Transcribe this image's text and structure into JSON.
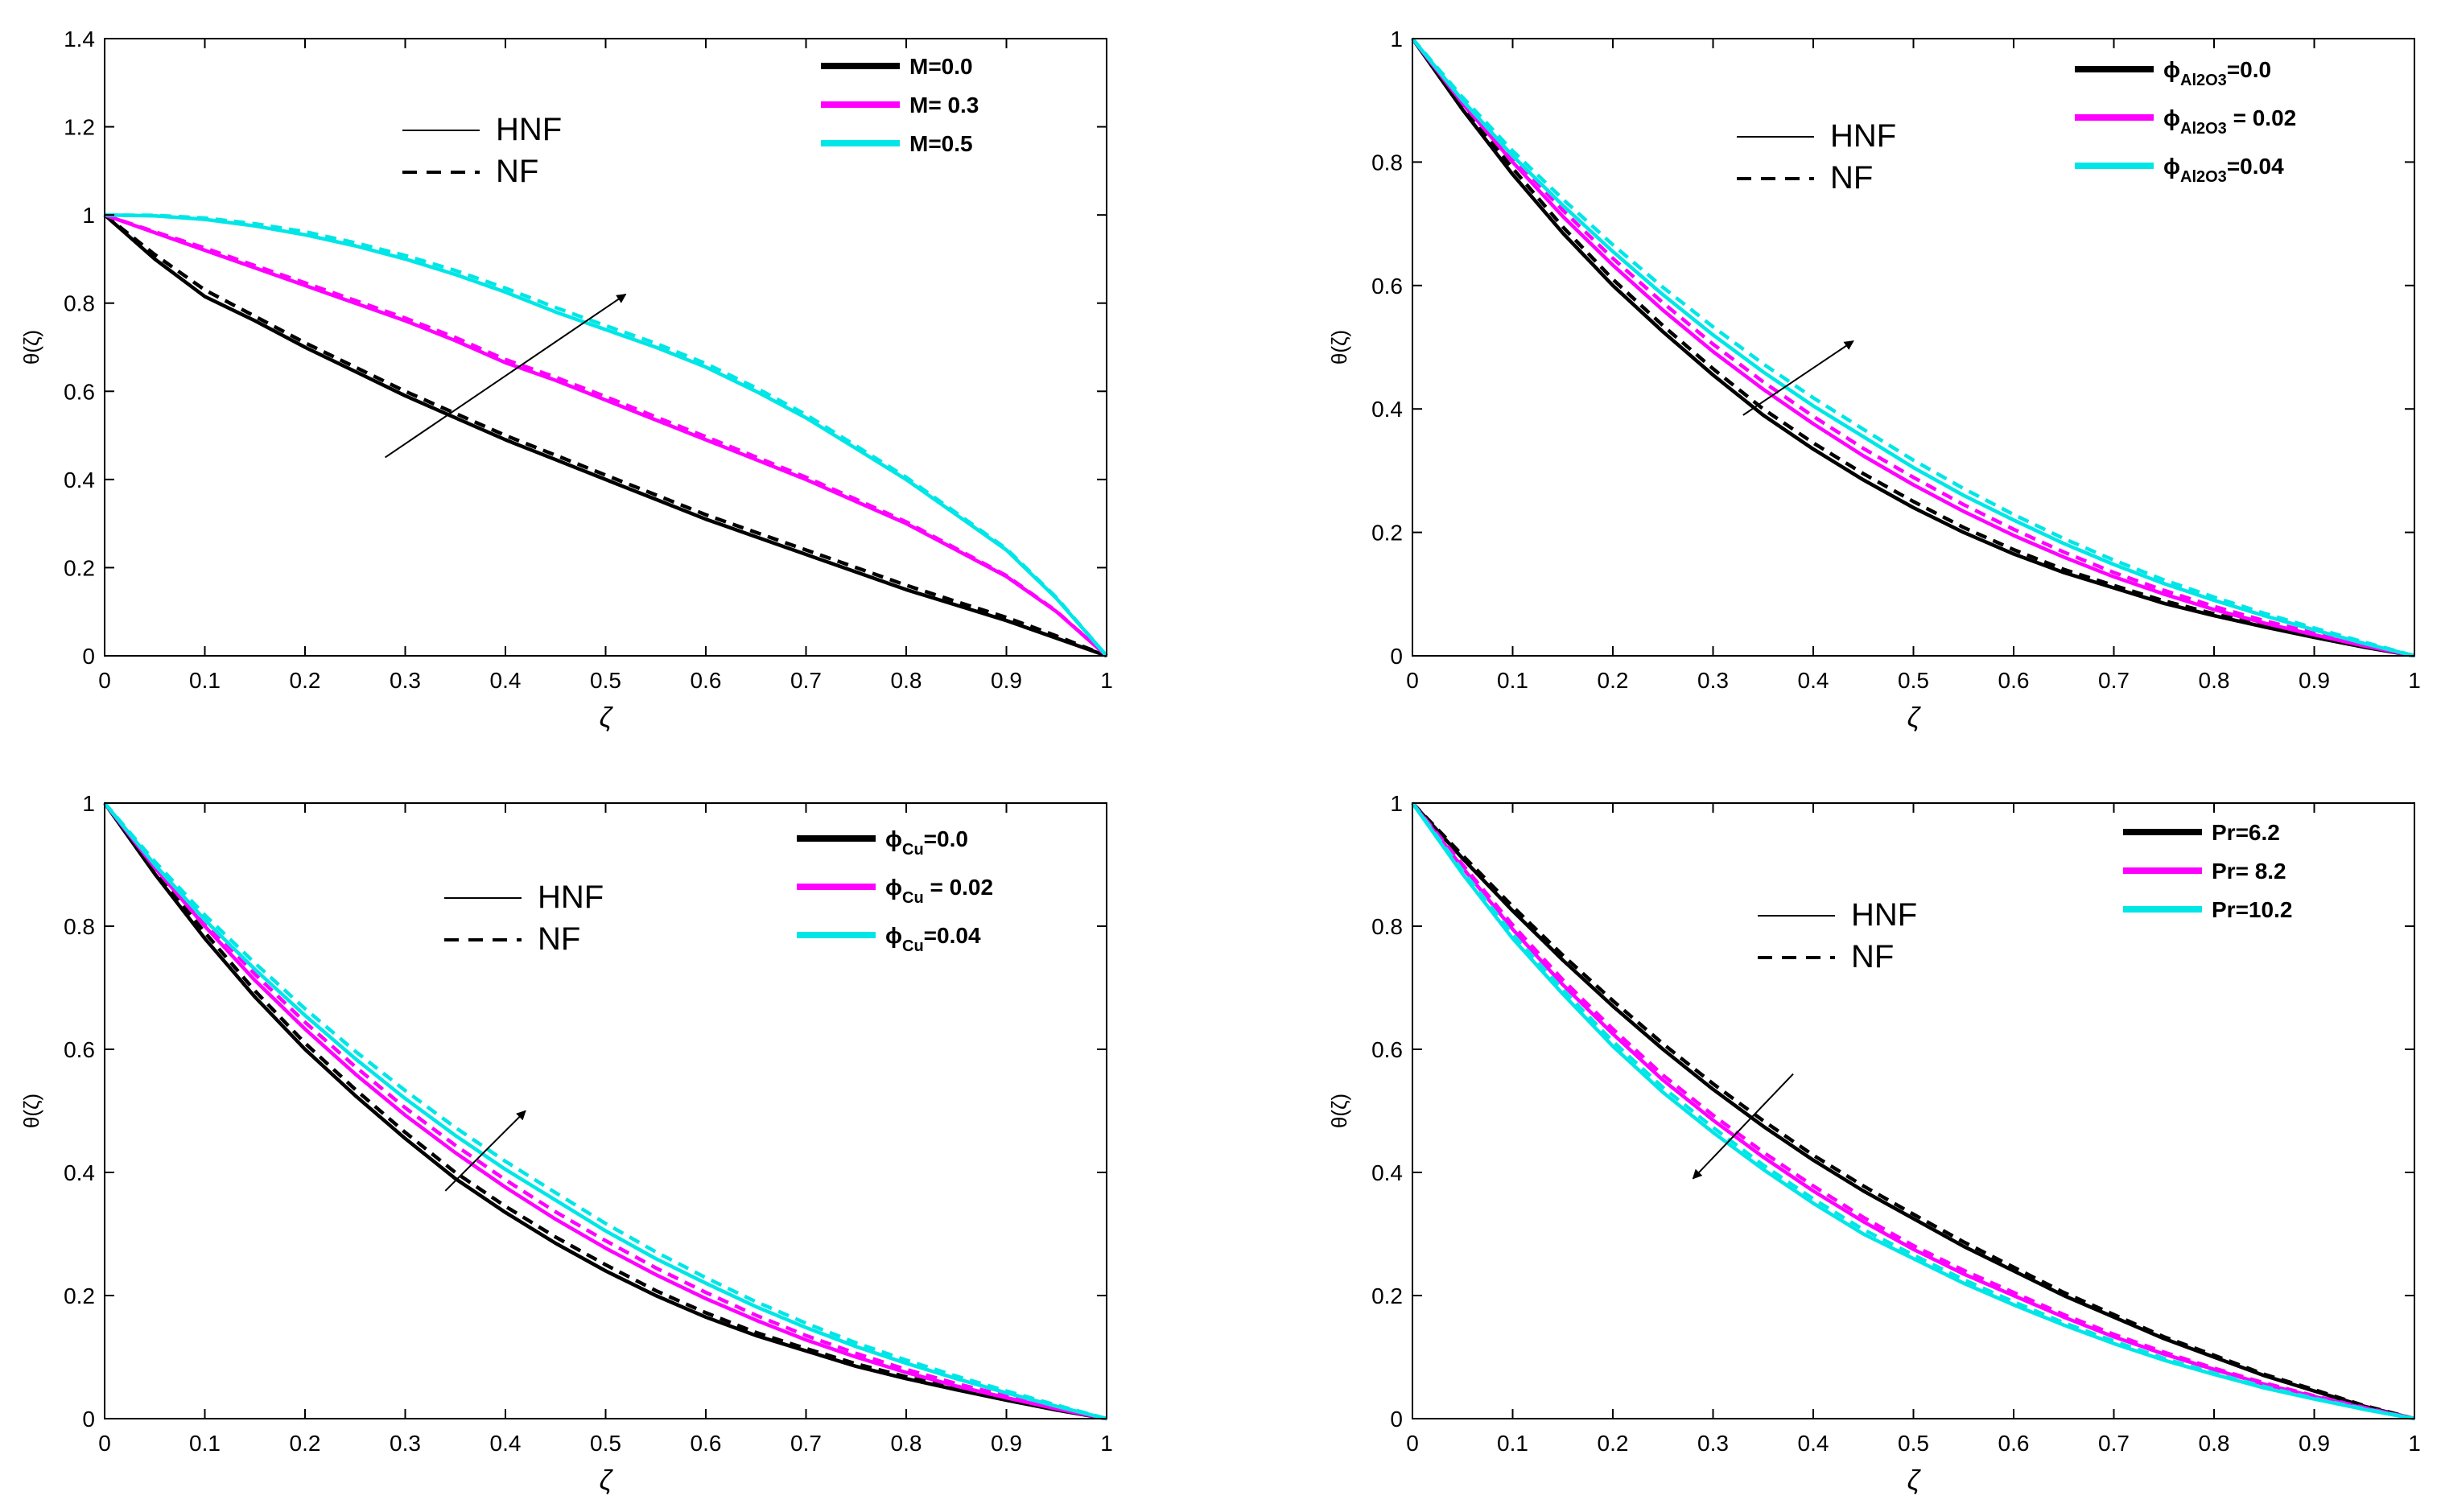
{
  "chart_data": [
    {
      "type": "line",
      "xlabel": "ζ",
      "ylabel": "θ(ζ)",
      "xlim": [
        0,
        1
      ],
      "ylim": [
        0,
        1.4
      ],
      "xticks": [
        "0",
        "0.1",
        "0.2",
        "0.3",
        "0.4",
        "0.5",
        "0.6",
        "0.7",
        "0.8",
        "0.9",
        "1"
      ],
      "yticks": [
        "0",
        "0.2",
        "0.4",
        "0.6",
        "0.8",
        "1",
        "1.2",
        "1.4"
      ],
      "style_key": {
        "solid": "HNF",
        "dashed": "NF"
      },
      "legend": [
        {
          "label": "M=0.0",
          "color": "#000000"
        },
        {
          "label": "M= 0.3",
          "color": "#ff00ff"
        },
        {
          "label": "M=0.5",
          "color": "#00e6e6"
        }
      ],
      "arrow": {
        "from": [
          0.28,
          0.45
        ],
        "to": [
          0.52,
          0.82
        ]
      },
      "x": [
        0,
        0.05,
        0.1,
        0.15,
        0.2,
        0.25,
        0.3,
        0.35,
        0.4,
        0.45,
        0.5,
        0.55,
        0.6,
        0.65,
        0.7,
        0.75,
        0.8,
        0.85,
        0.9,
        0.95,
        1
      ],
      "series": [
        {
          "name": "M=0.0 HNF",
          "color": "#000000",
          "dash": false,
          "values": [
            1,
            0.9,
            0.815,
            0.76,
            0.7,
            0.645,
            0.59,
            0.54,
            0.49,
            0.445,
            0.4,
            0.355,
            0.31,
            0.27,
            0.23,
            0.19,
            0.15,
            0.115,
            0.08,
            0.04,
            0
          ]
        },
        {
          "name": "M=0.0 NF",
          "color": "#000000",
          "dash": true,
          "values": [
            1,
            0.91,
            0.83,
            0.77,
            0.71,
            0.655,
            0.6,
            0.55,
            0.5,
            0.455,
            0.41,
            0.365,
            0.32,
            0.28,
            0.24,
            0.2,
            0.16,
            0.123,
            0.087,
            0.045,
            0
          ]
        },
        {
          "name": "M= 0.3 HNF",
          "color": "#ff00ff",
          "dash": false,
          "values": [
            1,
            0.96,
            0.92,
            0.88,
            0.84,
            0.8,
            0.76,
            0.715,
            0.665,
            0.625,
            0.58,
            0.535,
            0.49,
            0.445,
            0.4,
            0.35,
            0.3,
            0.24,
            0.18,
            0.1,
            0
          ]
        },
        {
          "name": "M= 0.3 NF",
          "color": "#ff00ff",
          "dash": true,
          "values": [
            1,
            0.962,
            0.925,
            0.885,
            0.846,
            0.806,
            0.766,
            0.722,
            0.672,
            0.632,
            0.588,
            0.542,
            0.497,
            0.451,
            0.405,
            0.355,
            0.304,
            0.243,
            0.182,
            0.101,
            0
          ]
        },
        {
          "name": "M=0.5 HNF",
          "color": "#00e6e6",
          "dash": false,
          "values": [
            1,
            0.998,
            0.99,
            0.975,
            0.955,
            0.93,
            0.9,
            0.865,
            0.825,
            0.78,
            0.74,
            0.7,
            0.655,
            0.6,
            0.54,
            0.47,
            0.4,
            0.32,
            0.24,
            0.13,
            0
          ]
        },
        {
          "name": "M=0.5 NF",
          "color": "#00e6e6",
          "dash": true,
          "values": [
            1,
            0.999,
            0.993,
            0.98,
            0.962,
            0.937,
            0.908,
            0.874,
            0.834,
            0.79,
            0.749,
            0.709,
            0.663,
            0.608,
            0.547,
            0.476,
            0.405,
            0.324,
            0.243,
            0.132,
            0
          ]
        }
      ]
    },
    {
      "type": "line",
      "xlabel": "ζ",
      "ylabel": "θ(ζ)",
      "xlim": [
        0,
        1
      ],
      "ylim": [
        0,
        1
      ],
      "xticks": [
        "0",
        "0.1",
        "0.2",
        "0.3",
        "0.4",
        "0.5",
        "0.6",
        "0.7",
        "0.8",
        "0.9",
        "1"
      ],
      "yticks": [
        "0",
        "0.2",
        "0.4",
        "0.6",
        "0.8",
        "1"
      ],
      "style_key": {
        "solid": "HNF",
        "dashed": "NF"
      },
      "legend": [
        {
          "symbol": "ϕ",
          "sub": "Al2O3",
          "value": "=0.0",
          "color": "#000000"
        },
        {
          "symbol": "ϕ",
          "sub": "Al2O3",
          "value": " = 0.02",
          "color": "#ff00ff"
        },
        {
          "symbol": "ϕ",
          "sub": "Al2O3",
          "value": "=0.04",
          "color": "#00e6e6"
        }
      ],
      "arrow": {
        "from": [
          0.33,
          0.39
        ],
        "to": [
          0.44,
          0.51
        ]
      },
      "x": [
        0,
        0.05,
        0.1,
        0.15,
        0.2,
        0.25,
        0.3,
        0.35,
        0.4,
        0.45,
        0.5,
        0.55,
        0.6,
        0.65,
        0.7,
        0.75,
        0.8,
        0.85,
        0.9,
        0.95,
        1
      ],
      "series": [
        {
          "name": "ϕAl2O3=0.0 HNF",
          "color": "#000000",
          "dash": false,
          "values": [
            1,
            0.885,
            0.78,
            0.685,
            0.6,
            0.525,
            0.455,
            0.39,
            0.335,
            0.285,
            0.24,
            0.2,
            0.165,
            0.135,
            0.11,
            0.085,
            0.065,
            0.047,
            0.03,
            0.014,
            0
          ]
        },
        {
          "name": "ϕAl2O3=0.0 NF",
          "color": "#000000",
          "dash": true,
          "values": [
            1,
            0.89,
            0.79,
            0.695,
            0.61,
            0.535,
            0.465,
            0.4,
            0.345,
            0.295,
            0.25,
            0.208,
            0.172,
            0.14,
            0.114,
            0.089,
            0.068,
            0.049,
            0.032,
            0.015,
            0
          ]
        },
        {
          "name": "ϕAl2O3 = 0.02 HNF",
          "color": "#ff00ff",
          "dash": false,
          "values": [
            1,
            0.895,
            0.8,
            0.712,
            0.633,
            0.56,
            0.493,
            0.432,
            0.376,
            0.324,
            0.277,
            0.234,
            0.195,
            0.16,
            0.128,
            0.1,
            0.075,
            0.053,
            0.034,
            0.016,
            0
          ]
        },
        {
          "name": "ϕAl2O3 = 0.02 NF",
          "color": "#ff00ff",
          "dash": true,
          "values": [
            1,
            0.9,
            0.808,
            0.722,
            0.644,
            0.572,
            0.505,
            0.444,
            0.388,
            0.336,
            0.289,
            0.245,
            0.205,
            0.168,
            0.135,
            0.106,
            0.08,
            0.057,
            0.037,
            0.018,
            0
          ]
        },
        {
          "name": "ϕAl2O3=0.04 HNF",
          "color": "#00e6e6",
          "dash": false,
          "values": [
            1,
            0.9,
            0.81,
            0.73,
            0.655,
            0.585,
            0.52,
            0.46,
            0.405,
            0.355,
            0.305,
            0.26,
            0.22,
            0.182,
            0.148,
            0.117,
            0.09,
            0.065,
            0.042,
            0.02,
            0
          ]
        },
        {
          "name": "ϕAl2O3=0.04 NF",
          "color": "#00e6e6",
          "dash": true,
          "values": [
            1,
            0.905,
            0.818,
            0.74,
            0.666,
            0.597,
            0.533,
            0.473,
            0.418,
            0.367,
            0.317,
            0.271,
            0.229,
            0.19,
            0.155,
            0.123,
            0.095,
            0.069,
            0.045,
            0.022,
            0
          ]
        }
      ]
    },
    {
      "type": "line",
      "xlabel": "ζ",
      "ylabel": "θ(ζ)",
      "xlim": [
        0,
        1
      ],
      "ylim": [
        0,
        1
      ],
      "xticks": [
        "0",
        "0.1",
        "0.2",
        "0.3",
        "0.4",
        "0.5",
        "0.6",
        "0.7",
        "0.8",
        "0.9",
        "1"
      ],
      "yticks": [
        "0",
        "0.2",
        "0.4",
        "0.6",
        "0.8",
        "1"
      ],
      "style_key": {
        "solid": "HNF",
        "dashed": "NF"
      },
      "legend": [
        {
          "symbol": "ϕ",
          "sub": "Cu",
          "value": "=0.0",
          "color": "#000000"
        },
        {
          "symbol": "ϕ",
          "sub": "Cu",
          "value": " = 0.02",
          "color": "#ff00ff"
        },
        {
          "symbol": "ϕ",
          "sub": "Cu",
          "value": "=0.04",
          "color": "#00e6e6"
        }
      ],
      "arrow": {
        "from": [
          0.34,
          0.37
        ],
        "to": [
          0.42,
          0.5
        ]
      },
      "x": [
        0,
        0.05,
        0.1,
        0.15,
        0.2,
        0.25,
        0.3,
        0.35,
        0.4,
        0.45,
        0.5,
        0.55,
        0.6,
        0.65,
        0.7,
        0.75,
        0.8,
        0.85,
        0.9,
        0.95,
        1
      ],
      "series": [
        {
          "name": "ϕCu=0.0 HNF",
          "color": "#000000",
          "dash": false,
          "values": [
            1,
            0.885,
            0.78,
            0.685,
            0.6,
            0.525,
            0.455,
            0.39,
            0.335,
            0.285,
            0.24,
            0.2,
            0.165,
            0.135,
            0.11,
            0.085,
            0.065,
            0.047,
            0.03,
            0.014,
            0
          ]
        },
        {
          "name": "ϕCu=0.0 NF",
          "color": "#000000",
          "dash": true,
          "values": [
            1,
            0.89,
            0.79,
            0.695,
            0.61,
            0.535,
            0.465,
            0.4,
            0.345,
            0.295,
            0.25,
            0.208,
            0.172,
            0.14,
            0.114,
            0.089,
            0.068,
            0.049,
            0.032,
            0.015,
            0
          ]
        },
        {
          "name": "ϕCu = 0.02 HNF",
          "color": "#ff00ff",
          "dash": false,
          "values": [
            1,
            0.895,
            0.8,
            0.712,
            0.633,
            0.56,
            0.493,
            0.432,
            0.376,
            0.324,
            0.277,
            0.234,
            0.195,
            0.16,
            0.128,
            0.1,
            0.075,
            0.053,
            0.034,
            0.016,
            0
          ]
        },
        {
          "name": "ϕCu = 0.02 NF",
          "color": "#ff00ff",
          "dash": true,
          "values": [
            1,
            0.9,
            0.808,
            0.722,
            0.644,
            0.572,
            0.505,
            0.444,
            0.388,
            0.336,
            0.289,
            0.245,
            0.205,
            0.168,
            0.135,
            0.106,
            0.08,
            0.057,
            0.037,
            0.018,
            0
          ]
        },
        {
          "name": "ϕCu=0.04 HNF",
          "color": "#00e6e6",
          "dash": false,
          "values": [
            1,
            0.9,
            0.81,
            0.73,
            0.655,
            0.585,
            0.52,
            0.46,
            0.405,
            0.355,
            0.305,
            0.26,
            0.22,
            0.182,
            0.148,
            0.117,
            0.09,
            0.065,
            0.042,
            0.02,
            0
          ]
        },
        {
          "name": "ϕCu=0.04 NF",
          "color": "#00e6e6",
          "dash": true,
          "values": [
            1,
            0.905,
            0.818,
            0.74,
            0.666,
            0.597,
            0.533,
            0.473,
            0.418,
            0.367,
            0.317,
            0.271,
            0.229,
            0.19,
            0.155,
            0.123,
            0.095,
            0.069,
            0.045,
            0.022,
            0
          ]
        }
      ]
    },
    {
      "type": "line",
      "xlabel": "ζ",
      "ylabel": "θ(ζ)",
      "xlim": [
        0,
        1
      ],
      "ylim": [
        0,
        1
      ],
      "xticks": [
        "0",
        "0.1",
        "0.2",
        "0.3",
        "0.4",
        "0.5",
        "0.6",
        "0.7",
        "0.8",
        "0.9",
        "1"
      ],
      "yticks": [
        "0",
        "0.2",
        "0.4",
        "0.6",
        "0.8",
        "1"
      ],
      "style_key": {
        "solid": "HNF",
        "dashed": "NF"
      },
      "legend": [
        {
          "label": "Pr=6.2",
          "color": "#000000"
        },
        {
          "label": "Pr= 8.2",
          "color": "#ff00ff"
        },
        {
          "label": "Pr=10.2",
          "color": "#00e6e6"
        }
      ],
      "arrow": {
        "from": [
          0.38,
          0.56
        ],
        "to": [
          0.28,
          0.39
        ]
      },
      "x": [
        0,
        0.05,
        0.1,
        0.15,
        0.2,
        0.25,
        0.3,
        0.35,
        0.4,
        0.45,
        0.5,
        0.55,
        0.6,
        0.65,
        0.7,
        0.75,
        0.8,
        0.85,
        0.9,
        0.95,
        1
      ],
      "series": [
        {
          "name": "Pr=6.2 HNF",
          "color": "#000000",
          "dash": false,
          "values": [
            1,
            0.91,
            0.825,
            0.745,
            0.67,
            0.6,
            0.535,
            0.475,
            0.42,
            0.37,
            0.325,
            0.28,
            0.24,
            0.2,
            0.165,
            0.13,
            0.1,
            0.07,
            0.045,
            0.02,
            0
          ]
        },
        {
          "name": "Pr=6.2 NF",
          "color": "#000000",
          "dash": true,
          "values": [
            1,
            0.915,
            0.832,
            0.753,
            0.679,
            0.609,
            0.544,
            0.484,
            0.428,
            0.378,
            0.332,
            0.287,
            0.246,
            0.205,
            0.169,
            0.133,
            0.103,
            0.072,
            0.047,
            0.021,
            0
          ]
        },
        {
          "name": "Pr= 8.2 HNF",
          "color": "#ff00ff",
          "dash": false,
          "values": [
            1,
            0.895,
            0.795,
            0.705,
            0.625,
            0.55,
            0.485,
            0.425,
            0.37,
            0.32,
            0.275,
            0.235,
            0.2,
            0.165,
            0.133,
            0.105,
            0.08,
            0.056,
            0.036,
            0.017,
            0
          ]
        },
        {
          "name": "Pr= 8.2 NF",
          "color": "#ff00ff",
          "dash": true,
          "values": [
            1,
            0.9,
            0.802,
            0.713,
            0.633,
            0.558,
            0.493,
            0.433,
            0.378,
            0.327,
            0.281,
            0.241,
            0.205,
            0.169,
            0.137,
            0.108,
            0.082,
            0.058,
            0.037,
            0.018,
            0
          ]
        },
        {
          "name": "Pr=10.2 HNF",
          "color": "#00e6e6",
          "dash": false,
          "values": [
            1,
            0.885,
            0.78,
            0.69,
            0.605,
            0.53,
            0.465,
            0.405,
            0.35,
            0.3,
            0.26,
            0.22,
            0.185,
            0.152,
            0.122,
            0.095,
            0.072,
            0.05,
            0.032,
            0.015,
            0
          ]
        },
        {
          "name": "Pr=10.2 NF",
          "color": "#00e6e6",
          "dash": true,
          "values": [
            1,
            0.89,
            0.787,
            0.697,
            0.613,
            0.538,
            0.473,
            0.412,
            0.357,
            0.307,
            0.266,
            0.226,
            0.19,
            0.156,
            0.126,
            0.098,
            0.074,
            0.052,
            0.033,
            0.016,
            0
          ]
        }
      ]
    }
  ]
}
